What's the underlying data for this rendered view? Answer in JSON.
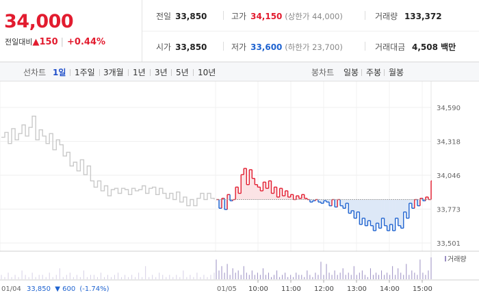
{
  "summary": {
    "price": "34,000",
    "change_label": "전일대비",
    "change_arrow": "▲",
    "change_value": "150",
    "change_pct": "+0.44%",
    "up_color": "#e21c2f",
    "down_color": "#1f63d0"
  },
  "stats": {
    "prev_close": {
      "label": "전일",
      "value": "33,850"
    },
    "open": {
      "label": "시가",
      "value": "33,850"
    },
    "high": {
      "label": "고가",
      "value": "34,150",
      "sub": "(상한가 44,000)"
    },
    "low": {
      "label": "저가",
      "value": "33,600",
      "sub": "(하한가 23,700)"
    },
    "volume": {
      "label": "거래량",
      "value": "133,372"
    },
    "amount": {
      "label": "거래대금",
      "value": "4,508 백만"
    }
  },
  "line_tabs": {
    "title": "선차트",
    "items": [
      "1일",
      "1주일",
      "3개월",
      "1년",
      "3년",
      "5년",
      "10년"
    ],
    "active": "1일"
  },
  "candle_tabs": {
    "title": "봉차트",
    "items": [
      "일봉",
      "주봉",
      "월봉"
    ]
  },
  "chart_data": {
    "type": "line",
    "title": "",
    "y_ticks": [
      "34,590",
      "34,318",
      "34,046",
      "33,773",
      "33,501"
    ],
    "ylim": [
      33501,
      34590
    ],
    "reference_price": 33850,
    "previous_day": {
      "date": "01/04",
      "close": "33,850",
      "arrow": "▼",
      "change": "600",
      "pct": "(-1.74%)",
      "values": [
        34350,
        34390,
        34300,
        34420,
        34330,
        34380,
        34450,
        34360,
        34430,
        34520,
        34330,
        34410,
        34360,
        34300,
        34380,
        34250,
        34330,
        34290,
        34200,
        34230,
        34120,
        34150,
        34080,
        34170,
        34050,
        34120,
        34000,
        33950,
        34000,
        33920,
        33960,
        33880,
        33930,
        33940,
        33900,
        33940,
        33930,
        33890,
        33940,
        33920,
        33930,
        33960,
        33900,
        33940,
        33950,
        33890,
        33940,
        33900,
        33860,
        33900,
        33850,
        33910,
        33830,
        33870,
        33800,
        33850,
        33800,
        33860,
        33900,
        33850,
        33900,
        33860,
        33850
      ]
    },
    "current_day": {
      "date": "01/05",
      "x_ticks": [
        "10:00",
        "11:00",
        "12:00",
        "13:00",
        "14:00",
        "15:00"
      ],
      "values": [
        33850,
        33780,
        33860,
        33770,
        33890,
        33840,
        33850,
        33950,
        33900,
        34050,
        34100,
        33970,
        34090,
        34020,
        33970,
        33950,
        33920,
        33990,
        33940,
        34000,
        33900,
        33950,
        33870,
        33940,
        33880,
        33920,
        33870,
        33890,
        33850,
        33880,
        33860,
        33890,
        33860,
        33850,
        33830,
        33840,
        33850,
        33830,
        33820,
        33840,
        33830,
        33800,
        33850,
        33790,
        33850,
        33800,
        33780,
        33820,
        33740,
        33760,
        33700,
        33750,
        33650,
        33700,
        33640,
        33680,
        33640,
        33600,
        33660,
        33620,
        33700,
        33640,
        33600,
        33650,
        33600,
        33700,
        33640,
        33620,
        33750,
        33700,
        33820,
        33780,
        33850,
        33800,
        33860,
        33840,
        33870,
        33850,
        34000
      ]
    },
    "volume_label": "거래량",
    "volume_color": "#9a8ec2",
    "previous_volume": [
      2,
      1,
      3,
      1,
      2,
      1,
      4,
      2,
      1,
      3,
      1,
      2,
      2,
      1,
      3,
      1,
      2,
      5,
      1,
      2,
      3,
      1,
      2,
      1,
      4,
      1,
      2,
      2,
      1,
      3,
      1,
      2,
      1,
      2,
      3,
      1,
      2,
      1,
      2,
      1,
      3,
      1,
      6,
      1,
      2,
      1,
      3,
      2,
      1,
      2,
      1,
      2,
      1,
      4,
      1,
      2,
      1,
      3,
      1,
      2,
      1,
      2,
      3
    ],
    "current_volume": [
      9,
      4,
      6,
      3,
      7,
      2,
      5,
      3,
      4,
      2,
      6,
      3,
      2,
      4,
      2,
      3,
      2,
      5,
      2,
      3,
      1,
      2,
      4,
      1,
      2,
      3,
      1,
      2,
      1,
      3,
      2,
      2,
      1,
      4,
      2,
      1,
      3,
      2,
      8,
      2,
      7,
      3,
      2,
      4,
      2,
      3,
      5,
      2,
      3,
      2,
      6,
      2,
      3,
      4,
      2,
      1,
      5,
      2,
      3,
      2,
      4,
      2,
      3,
      2,
      6,
      2,
      5,
      3,
      2,
      7,
      2,
      4,
      3,
      2,
      9,
      3,
      2,
      4,
      10
    ]
  }
}
